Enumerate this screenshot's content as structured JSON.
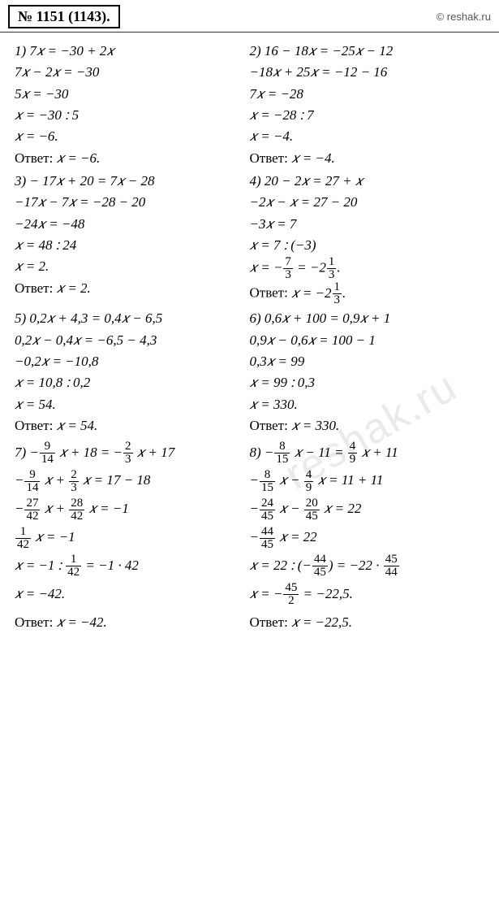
{
  "header": {
    "title": "№ 1151 (1143).",
    "copyright": "© reshak.ru"
  },
  "watermark": "reshak.ru",
  "p1": {
    "l1": "1) 7𝑥 = −30 + 2𝑥",
    "l2": "7𝑥 − 2𝑥 = −30",
    "l3": "5𝑥 = −30",
    "l4": "𝑥 = −30 ∶ 5",
    "l5": "𝑥 = −6.",
    "ans_label": "Ответ: ",
    "ans_val": "𝑥 = −6."
  },
  "p2": {
    "l1": "2) 16 − 18𝑥 = −25𝑥 − 12",
    "l2": "−18𝑥 + 25𝑥 = −12 − 16",
    "l3": "7𝑥 = −28",
    "l4": "𝑥 = −28 ∶ 7",
    "l5": "𝑥 = −4.",
    "ans_label": "Ответ: ",
    "ans_val": "𝑥 = −4."
  },
  "p3": {
    "l1": "3) − 17𝑥 + 20 = 7𝑥 − 28",
    "l2": "−17𝑥 − 7𝑥 = −28 − 20",
    "l3": "−24𝑥 = −48",
    "l4": "𝑥 = 48 ∶ 24",
    "l5": "𝑥 = 2.",
    "ans_label": "Ответ: ",
    "ans_val": "𝑥 = 2."
  },
  "p4": {
    "l1": "4) 20 − 2𝑥 = 27 + 𝑥",
    "l2": "−2𝑥 − 𝑥 = 27 − 20",
    "l3": "−3𝑥 = 7",
    "l4": "𝑥 = 7 ∶ (−3)",
    "f1n": "7",
    "f1d": "3",
    "f2n": "1",
    "f2d": "3",
    "ans_label": "Ответ: ",
    "ans_prefix": "𝑥 = −2"
  },
  "p5": {
    "l1": "5) 0,2𝑥 + 4,3 = 0,4𝑥 − 6,5",
    "l2": "0,2𝑥 − 0,4𝑥 = −6,5 − 4,3",
    "l3": "−0,2𝑥 = −10,8",
    "l4": "𝑥 = 10,8 ∶ 0,2",
    "l5": "𝑥 = 54.",
    "ans_label": "Ответ: ",
    "ans_val": "𝑥 = 54."
  },
  "p6": {
    "l1": "6) 0,6𝑥 + 100 = 0,9𝑥 + 1",
    "l2": "0,9𝑥 − 0,6𝑥 = 100 − 1",
    "l3": "0,3𝑥 = 99",
    "l4": "𝑥 = 99 ∶ 0,3",
    "l5": "𝑥 = 330.",
    "ans_label": "Ответ: ",
    "ans_val": "𝑥 = 330."
  },
  "p7": {
    "f_9": "9",
    "f_14": "14",
    "f_2": "2",
    "f_3": "3",
    "f_27": "27",
    "f_42": "42",
    "f_28": "28",
    "f_1": "1",
    "txt_7": "7) −",
    "txt_x18": " 𝑥 + 18 = −",
    "txt_x17": " 𝑥 + 17",
    "txt_minus": "−",
    "txt_xplus": " 𝑥 + ",
    "txt_eq1718": " 𝑥 = 17 − 18",
    "txt_eqm1": " 𝑥 = −1",
    "txt_xeqm1div": "𝑥 = −1 ∶ ",
    "txt_eqm142": " = −1 · 42",
    "l6": "𝑥 = −42.",
    "ans_label": "Ответ: ",
    "ans_val": "𝑥 = −42."
  },
  "p8": {
    "f_8": "8",
    "f_15": "15",
    "f_4": "4",
    "f_9": "9",
    "f_24": "24",
    "f_45": "45",
    "f_20": "20",
    "f_44": "44",
    "f_2": "2",
    "txt_8": "8) −",
    "txt_xm11": " 𝑥 − 11 = ",
    "txt_xp11": " 𝑥 + 11",
    "txt_minus": "−",
    "txt_xminus": " 𝑥 − ",
    "txt_eq1111": " 𝑥 = 11 + 11",
    "txt_eq22": " 𝑥 = 22",
    "txt_xeq22div": "𝑥 = 22 ∶ (−",
    "txt_close_eq": ") = −22 · ",
    "txt_xeqminus": "𝑥 = −",
    "txt_eqm225": " = −22,5.",
    "ans_label": "Ответ: ",
    "ans_val": "𝑥 = −22,5."
  }
}
